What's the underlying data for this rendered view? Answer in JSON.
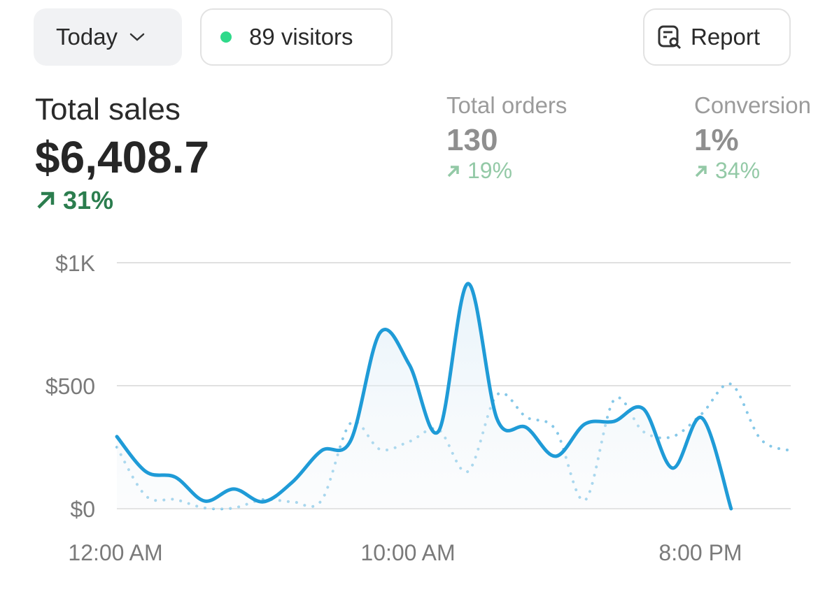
{
  "header": {
    "period": "Today",
    "visitors": "89 visitors",
    "report": "Report"
  },
  "metrics": [
    {
      "label": "Total sales",
      "value": "$6,408.7",
      "change": "31%"
    },
    {
      "label": "Total orders",
      "value": "130",
      "change": "19%"
    },
    {
      "label": "Conversion",
      "value": "1%",
      "change": "34%"
    }
  ],
  "chart_data": {
    "type": "line",
    "categories": [
      "12:00 AM",
      null,
      null,
      null,
      null,
      null,
      null,
      null,
      null,
      null,
      "10:00 AM",
      null,
      null,
      null,
      null,
      null,
      null,
      null,
      null,
      null,
      "8:00 PM",
      null,
      null,
      null
    ],
    "series": [
      {
        "color": "#1f9bd7",
        "style": "solid",
        "values": [
          293,
          150,
          128,
          31,
          80,
          28,
          108,
          236,
          278,
          716,
          585,
          315,
          915,
          364,
          330,
          213,
          344,
          355,
          406,
          165,
          369,
          0,
          null,
          null
        ]
      },
      {
        "color": "#86c8e8",
        "style": "dotted",
        "values": [
          250,
          51,
          37,
          3,
          3,
          37,
          28,
          34,
          349,
          241,
          273,
          321,
          151,
          463,
          372,
          321,
          34,
          443,
          313,
          293,
          386,
          506,
          284,
          236
        ]
      }
    ],
    "ylim": [
      0,
      1000
    ],
    "yticks": [
      {
        "value": 0,
        "label": "$0"
      },
      {
        "value": 500,
        "label": "$500"
      },
      {
        "value": 1000,
        "label": "$1K"
      }
    ],
    "grid": true
  }
}
